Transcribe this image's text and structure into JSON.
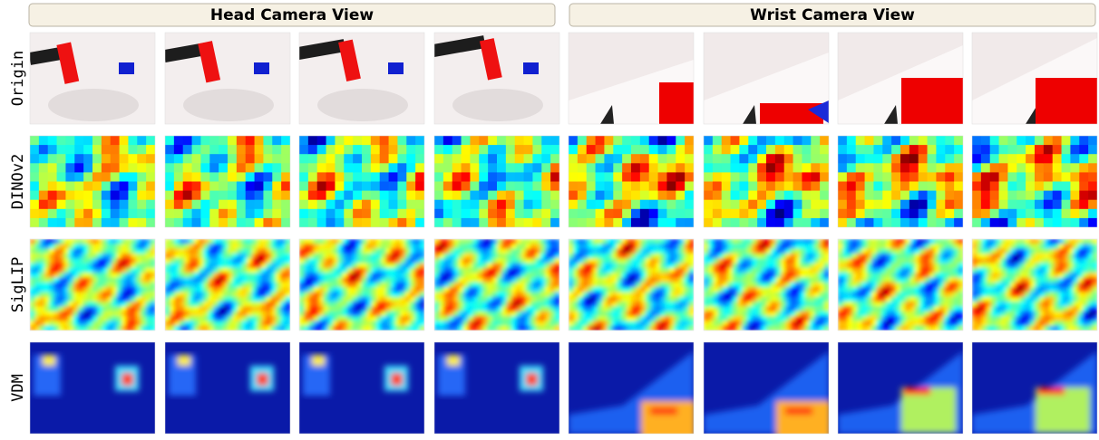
{
  "header": {
    "left": "Head Camera View",
    "right": "Wrist Camera View"
  },
  "rows": [
    "Origin",
    "DINOv2",
    "SigLIP",
    "VDM"
  ]
}
